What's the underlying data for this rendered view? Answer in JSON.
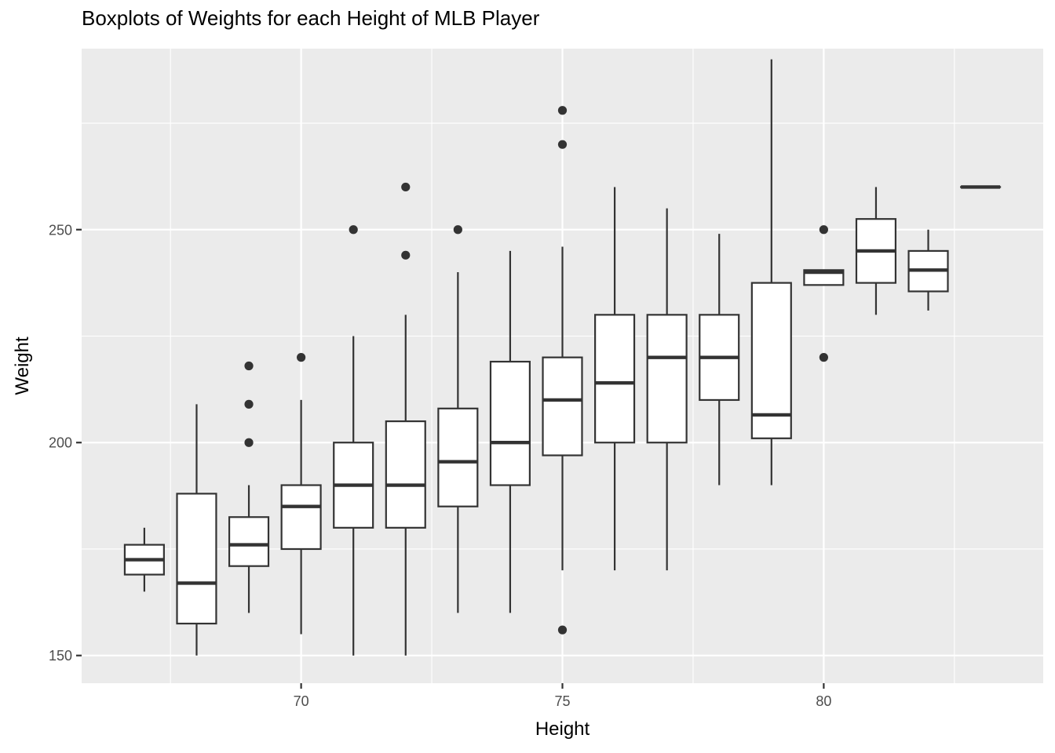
{
  "chart_data": {
    "type": "boxplot",
    "title": "Boxplots of Weights for each Height of MLB Player",
    "xlabel": "Height",
    "ylabel": "Weight",
    "x_ticks": [
      70,
      75,
      80
    ],
    "y_ticks": [
      150,
      200,
      250
    ],
    "xlim": [
      65.8,
      84.2
    ],
    "ylim": [
      143.5,
      292.5
    ],
    "grid": true,
    "panel_background": "#ebebeb",
    "box_fill": "#ffffff",
    "line_color": "#333333",
    "boxes": [
      {
        "x": 67,
        "lower_whisker": 165,
        "q1": 169,
        "median": 172.5,
        "q3": 176,
        "upper_whisker": 180,
        "outliers": []
      },
      {
        "x": 68,
        "lower_whisker": 150,
        "q1": 157.5,
        "median": 167,
        "q3": 188,
        "upper_whisker": 209,
        "outliers": []
      },
      {
        "x": 69,
        "lower_whisker": 160,
        "q1": 171,
        "median": 176,
        "q3": 182.5,
        "upper_whisker": 190,
        "outliers": [
          200,
          209,
          218
        ]
      },
      {
        "x": 70,
        "lower_whisker": 155,
        "q1": 175,
        "median": 185,
        "q3": 190,
        "upper_whisker": 210,
        "outliers": [
          220
        ]
      },
      {
        "x": 71,
        "lower_whisker": 150,
        "q1": 180,
        "median": 190,
        "q3": 200,
        "upper_whisker": 225,
        "outliers": [
          250
        ]
      },
      {
        "x": 72,
        "lower_whisker": 150,
        "q1": 180,
        "median": 190,
        "q3": 205,
        "upper_whisker": 230,
        "outliers": [
          244,
          260
        ]
      },
      {
        "x": 73,
        "lower_whisker": 160,
        "q1": 185,
        "median": 195.5,
        "q3": 208,
        "upper_whisker": 240,
        "outliers": [
          250
        ]
      },
      {
        "x": 74,
        "lower_whisker": 160,
        "q1": 190,
        "median": 200,
        "q3": 219,
        "upper_whisker": 245,
        "outliers": []
      },
      {
        "x": 75,
        "lower_whisker": 170,
        "q1": 197,
        "median": 210,
        "q3": 220,
        "upper_whisker": 246,
        "outliers": [
          156,
          270,
          278
        ]
      },
      {
        "x": 76,
        "lower_whisker": 170,
        "q1": 200,
        "median": 214,
        "q3": 230,
        "upper_whisker": 260,
        "outliers": []
      },
      {
        "x": 77,
        "lower_whisker": 170,
        "q1": 200,
        "median": 220,
        "q3": 230,
        "upper_whisker": 255,
        "outliers": []
      },
      {
        "x": 78,
        "lower_whisker": 190,
        "q1": 210,
        "median": 220,
        "q3": 230,
        "upper_whisker": 249,
        "outliers": []
      },
      {
        "x": 79,
        "lower_whisker": 190,
        "q1": 201,
        "median": 206.5,
        "q3": 237.5,
        "upper_whisker": 290,
        "outliers": []
      },
      {
        "x": 80,
        "lower_whisker": 237,
        "q1": 237,
        "median": 240,
        "q3": 240.5,
        "upper_whisker": 240.5,
        "outliers": [
          220,
          250
        ]
      },
      {
        "x": 81,
        "lower_whisker": 230,
        "q1": 237.5,
        "median": 245,
        "q3": 252.5,
        "upper_whisker": 260,
        "outliers": []
      },
      {
        "x": 82,
        "lower_whisker": 231,
        "q1": 235.5,
        "median": 240.5,
        "q3": 245,
        "upper_whisker": 250,
        "outliers": []
      },
      {
        "x": 83,
        "lower_whisker": 260,
        "q1": 260,
        "median": 260,
        "q3": 260,
        "upper_whisker": 260,
        "outliers": []
      }
    ]
  }
}
